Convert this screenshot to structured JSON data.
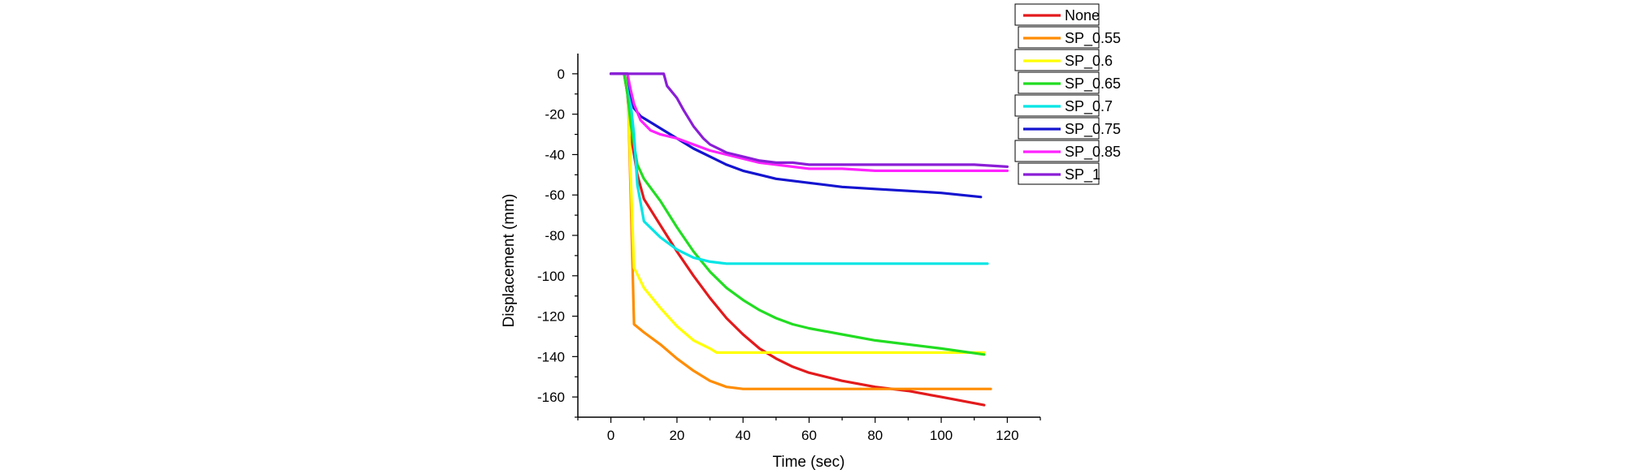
{
  "chart_data": {
    "type": "line",
    "xlabel": "Time (sec)",
    "ylabel": "Displacement (mm)",
    "xlim": [
      -10,
      130
    ],
    "ylim": [
      -170,
      10
    ],
    "xticks": [
      0,
      20,
      40,
      60,
      80,
      100,
      120
    ],
    "yticks": [
      0,
      -20,
      -40,
      -60,
      -80,
      -100,
      -120,
      -140,
      -160
    ],
    "grid": false,
    "legend_position": "top-right",
    "series": [
      {
        "name": "None",
        "color": "#e31a1c",
        "points": [
          [
            0,
            0
          ],
          [
            4,
            0
          ],
          [
            5,
            -10
          ],
          [
            6,
            -30
          ],
          [
            8,
            -50
          ],
          [
            10,
            -62
          ],
          [
            15,
            -75
          ],
          [
            20,
            -88
          ],
          [
            25,
            -100
          ],
          [
            30,
            -111
          ],
          [
            35,
            -121
          ],
          [
            40,
            -129
          ],
          [
            45,
            -136
          ],
          [
            50,
            -141
          ],
          [
            55,
            -145
          ],
          [
            60,
            -148
          ],
          [
            70,
            -152
          ],
          [
            80,
            -155
          ],
          [
            90,
            -157
          ],
          [
            100,
            -160
          ],
          [
            113,
            -164
          ]
        ]
      },
      {
        "name": "SP_0.55",
        "color": "#ff8c00",
        "points": [
          [
            0,
            0
          ],
          [
            5,
            0
          ],
          [
            6,
            -60
          ],
          [
            7,
            -124
          ],
          [
            10,
            -128
          ],
          [
            15,
            -134
          ],
          [
            20,
            -141
          ],
          [
            25,
            -147
          ],
          [
            30,
            -152
          ],
          [
            35,
            -155
          ],
          [
            40,
            -156
          ],
          [
            60,
            -156
          ],
          [
            80,
            -156
          ],
          [
            100,
            -156
          ],
          [
            115,
            -156
          ]
        ]
      },
      {
        "name": "SP_0.6",
        "color": "#ffff00",
        "points": [
          [
            0,
            0
          ],
          [
            5,
            0
          ],
          [
            6,
            -50
          ],
          [
            7,
            -96
          ],
          [
            10,
            -106
          ],
          [
            15,
            -116
          ],
          [
            20,
            -125
          ],
          [
            25,
            -132
          ],
          [
            30,
            -136
          ],
          [
            32,
            -138
          ],
          [
            40,
            -138
          ],
          [
            60,
            -138
          ],
          [
            80,
            -138
          ],
          [
            100,
            -138
          ],
          [
            113,
            -138
          ]
        ]
      },
      {
        "name": "SP_0.65",
        "color": "#22dd22",
        "points": [
          [
            0,
            0
          ],
          [
            4,
            0
          ],
          [
            5,
            -10
          ],
          [
            6,
            -25
          ],
          [
            8,
            -45
          ],
          [
            10,
            -52
          ],
          [
            15,
            -63
          ],
          [
            20,
            -76
          ],
          [
            25,
            -88
          ],
          [
            30,
            -98
          ],
          [
            35,
            -106
          ],
          [
            40,
            -112
          ],
          [
            45,
            -117
          ],
          [
            50,
            -121
          ],
          [
            55,
            -124
          ],
          [
            60,
            -126
          ],
          [
            70,
            -129
          ],
          [
            80,
            -132
          ],
          [
            90,
            -134
          ],
          [
            100,
            -136
          ],
          [
            113,
            -139
          ]
        ]
      },
      {
        "name": "SP_0.7",
        "color": "#00e5e5",
        "points": [
          [
            0,
            0
          ],
          [
            5,
            0
          ],
          [
            7,
            -30
          ],
          [
            8,
            -55
          ],
          [
            10,
            -73
          ],
          [
            15,
            -81
          ],
          [
            20,
            -87
          ],
          [
            25,
            -91
          ],
          [
            30,
            -93
          ],
          [
            35,
            -94
          ],
          [
            40,
            -94
          ],
          [
            60,
            -94
          ],
          [
            80,
            -94
          ],
          [
            100,
            -94
          ],
          [
            114,
            -94
          ]
        ]
      },
      {
        "name": "SP_0.75",
        "color": "#1414d0",
        "points": [
          [
            0,
            0
          ],
          [
            5,
            0
          ],
          [
            6,
            -10
          ],
          [
            7,
            -17
          ],
          [
            9,
            -21
          ],
          [
            12,
            -24
          ],
          [
            15,
            -27
          ],
          [
            20,
            -32
          ],
          [
            25,
            -37
          ],
          [
            30,
            -41
          ],
          [
            35,
            -45
          ],
          [
            40,
            -48
          ],
          [
            45,
            -50
          ],
          [
            50,
            -52
          ],
          [
            55,
            -53
          ],
          [
            60,
            -54
          ],
          [
            70,
            -56
          ],
          [
            80,
            -57
          ],
          [
            90,
            -58
          ],
          [
            100,
            -59
          ],
          [
            112,
            -61
          ]
        ]
      },
      {
        "name": "SP_0.85",
        "color": "#ff22ff",
        "points": [
          [
            0,
            0
          ],
          [
            5,
            0
          ],
          [
            6,
            -8
          ],
          [
            7,
            -15
          ],
          [
            9,
            -23
          ],
          [
            12,
            -28
          ],
          [
            15,
            -30
          ],
          [
            20,
            -32
          ],
          [
            25,
            -35
          ],
          [
            30,
            -38
          ],
          [
            35,
            -40
          ],
          [
            40,
            -42
          ],
          [
            45,
            -44
          ],
          [
            50,
            -45
          ],
          [
            55,
            -46
          ],
          [
            60,
            -47
          ],
          [
            70,
            -47
          ],
          [
            80,
            -48
          ],
          [
            90,
            -48
          ],
          [
            100,
            -48
          ],
          [
            113,
            -48
          ],
          [
            120,
            -48
          ]
        ]
      },
      {
        "name": "SP_1",
        "color": "#8a1ed6",
        "points": [
          [
            0,
            0
          ],
          [
            16,
            0
          ],
          [
            17,
            -6
          ],
          [
            18,
            -8
          ],
          [
            20,
            -12
          ],
          [
            22,
            -18
          ],
          [
            25,
            -26
          ],
          [
            28,
            -32
          ],
          [
            30,
            -35
          ],
          [
            35,
            -39
          ],
          [
            40,
            -41
          ],
          [
            45,
            -43
          ],
          [
            50,
            -44
          ],
          [
            55,
            -44
          ],
          [
            60,
            -45
          ],
          [
            70,
            -45
          ],
          [
            80,
            -45
          ],
          [
            90,
            -45
          ],
          [
            100,
            -45
          ],
          [
            110,
            -45
          ],
          [
            120,
            -46
          ]
        ]
      }
    ]
  }
}
